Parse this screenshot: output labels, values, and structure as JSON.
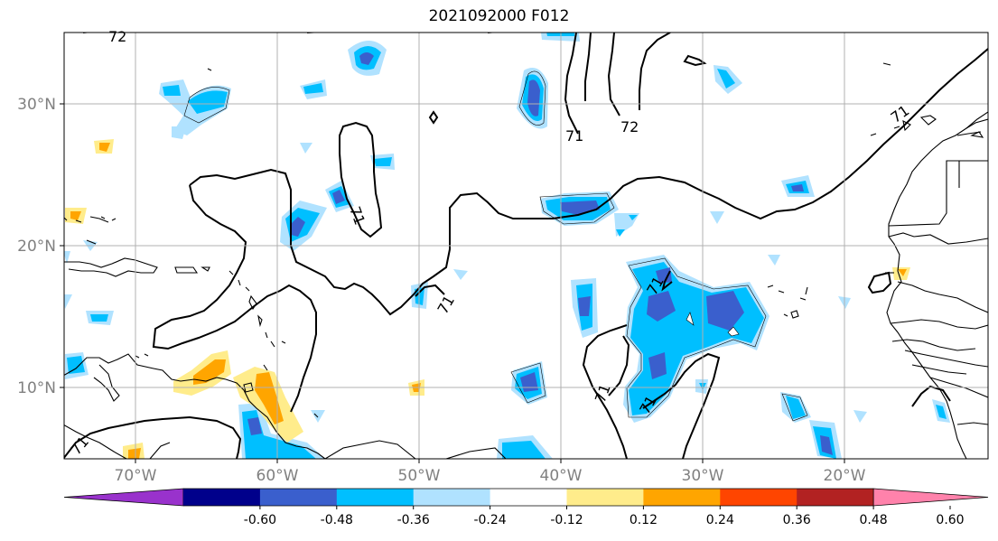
{
  "title": "2021092000 F012",
  "axes": {
    "lon_labels": [
      "70°W",
      "60°W",
      "50°W",
      "40°W",
      "30°W",
      "20°W"
    ],
    "lat_labels": [
      "30°N",
      "20°N",
      "10°N"
    ],
    "lon_range": [
      -75,
      -10
    ],
    "lat_range": [
      5,
      35
    ]
  },
  "colorbar": {
    "ticks": [
      "-0.60",
      "-0.48",
      "-0.36",
      "-0.24",
      "-0.12",
      "0.12",
      "0.24",
      "0.36",
      "0.48",
      "0.60"
    ],
    "colors": [
      "#9932cc",
      "#00008b",
      "#3a5fcd",
      "#00bfff",
      "#b0e2ff",
      "#ffffff",
      "#ffec8b",
      "#ffa500",
      "#ff4500",
      "#b22222",
      "#ff82ab"
    ]
  },
  "contour_labels": [
    "72",
    "71",
    "72",
    "71",
    "71",
    "71",
    "71",
    "71",
    "71",
    "71"
  ],
  "legend_colors": {
    "light_blue": "#b0e2ff",
    "blue": "#00bfff",
    "dark_blue": "#3a5fcd",
    "yellow": "#ffec8b",
    "orange": "#ffa500"
  }
}
